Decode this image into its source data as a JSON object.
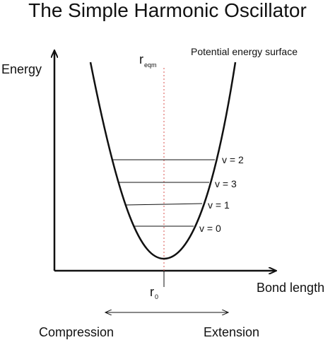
{
  "title": "The Simple Harmonic Oscillator",
  "y_axis_label": "Energy",
  "x_axis_label": "Bond length",
  "curve_label": "Potential energy surface",
  "r_eqm": {
    "base": "r",
    "sub": "eqm"
  },
  "r_0": {
    "base": "r",
    "sub": "0"
  },
  "compression_label": "Compression",
  "extension_label": "Extension",
  "levels": [
    {
      "label": "v = 2"
    },
    {
      "label": "v = 3"
    },
    {
      "label": "v = 1"
    },
    {
      "label": "v = 0"
    }
  ],
  "colors": {
    "curve": "#111111",
    "axis": "#111111",
    "equilibrium_line": "#d9534f",
    "text": "#111111"
  }
}
